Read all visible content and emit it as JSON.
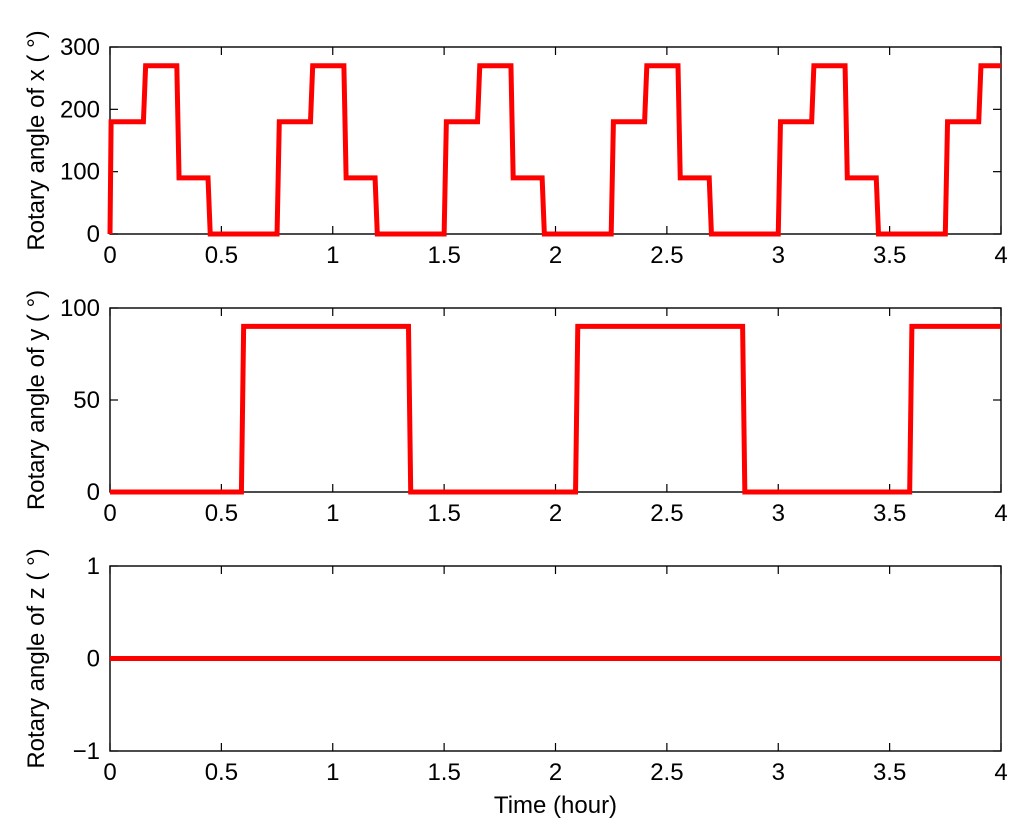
{
  "chart_data": [
    {
      "type": "line",
      "title": "",
      "xlabel": "",
      "ylabel": "Rotary angle of x ( °)",
      "xlim": [
        0,
        4
      ],
      "ylim": [
        0,
        300
      ],
      "xticks": [
        0,
        0.5,
        1,
        1.5,
        2,
        2.5,
        3,
        3.5,
        4
      ],
      "xtick_labels": [
        "0",
        "0.5",
        "1",
        "1.5",
        "2",
        "2.5",
        "3",
        "3.5",
        "4"
      ],
      "yticks": [
        0,
        100,
        200,
        300
      ],
      "ytick_labels": [
        "0",
        "100",
        "200",
        "300"
      ],
      "grid": false,
      "series": [
        {
          "color": "#ff0000",
          "x": [
            0,
            0.005,
            0.15,
            0.16,
            0.3,
            0.31,
            0.44,
            0.45,
            0.75,
            0.76,
            0.9,
            0.91,
            1.05,
            1.06,
            1.19,
            1.2,
            1.5,
            1.51,
            1.65,
            1.66,
            1.8,
            1.81,
            1.94,
            1.95,
            2.25,
            2.26,
            2.4,
            2.41,
            2.55,
            2.56,
            2.69,
            2.7,
            3.0,
            3.01,
            3.15,
            3.16,
            3.3,
            3.31,
            3.44,
            3.45,
            3.75,
            3.76,
            3.9,
            3.91,
            4.0
          ],
          "y": [
            0,
            180,
            180,
            270,
            270,
            90,
            90,
            0,
            0,
            180,
            180,
            270,
            270,
            90,
            90,
            0,
            0,
            180,
            180,
            270,
            270,
            90,
            90,
            0,
            0,
            180,
            180,
            270,
            270,
            90,
            90,
            0,
            0,
            180,
            180,
            270,
            270,
            90,
            90,
            0,
            0,
            180,
            180,
            270,
            270
          ]
        }
      ]
    },
    {
      "type": "line",
      "title": "",
      "xlabel": "",
      "ylabel": "Rotary angle of y ( °)",
      "xlim": [
        0,
        4
      ],
      "ylim": [
        0,
        100
      ],
      "xticks": [
        0,
        0.5,
        1,
        1.5,
        2,
        2.5,
        3,
        3.5,
        4
      ],
      "xtick_labels": [
        "0",
        "0.5",
        "1",
        "1.5",
        "2",
        "2.5",
        "3",
        "3.5",
        "4"
      ],
      "yticks": [
        0,
        50,
        100
      ],
      "ytick_labels": [
        "0",
        "50",
        "100"
      ],
      "grid": false,
      "series": [
        {
          "color": "#ff0000",
          "x": [
            0,
            0.59,
            0.6,
            1.34,
            1.35,
            2.09,
            2.1,
            2.84,
            2.85,
            3.59,
            3.6,
            4.0
          ],
          "y": [
            0,
            0,
            90,
            90,
            0,
            0,
            90,
            90,
            0,
            0,
            90,
            90
          ]
        }
      ]
    },
    {
      "type": "line",
      "title": "",
      "xlabel": "Time (hour)",
      "ylabel": "Rotary angle of z ( °)",
      "xlim": [
        0,
        4
      ],
      "ylim": [
        -1,
        1
      ],
      "xticks": [
        0,
        0.5,
        1,
        1.5,
        2,
        2.5,
        3,
        3.5,
        4
      ],
      "xtick_labels": [
        "0",
        "0.5",
        "1",
        "1.5",
        "2",
        "2.5",
        "3",
        "3.5",
        "4"
      ],
      "yticks": [
        -1,
        0,
        1
      ],
      "ytick_labels": [
        "−1",
        "0",
        "1"
      ],
      "grid": false,
      "series": [
        {
          "color": "#ff0000",
          "x": [
            0,
            4
          ],
          "y": [
            0,
            0
          ]
        }
      ]
    }
  ]
}
